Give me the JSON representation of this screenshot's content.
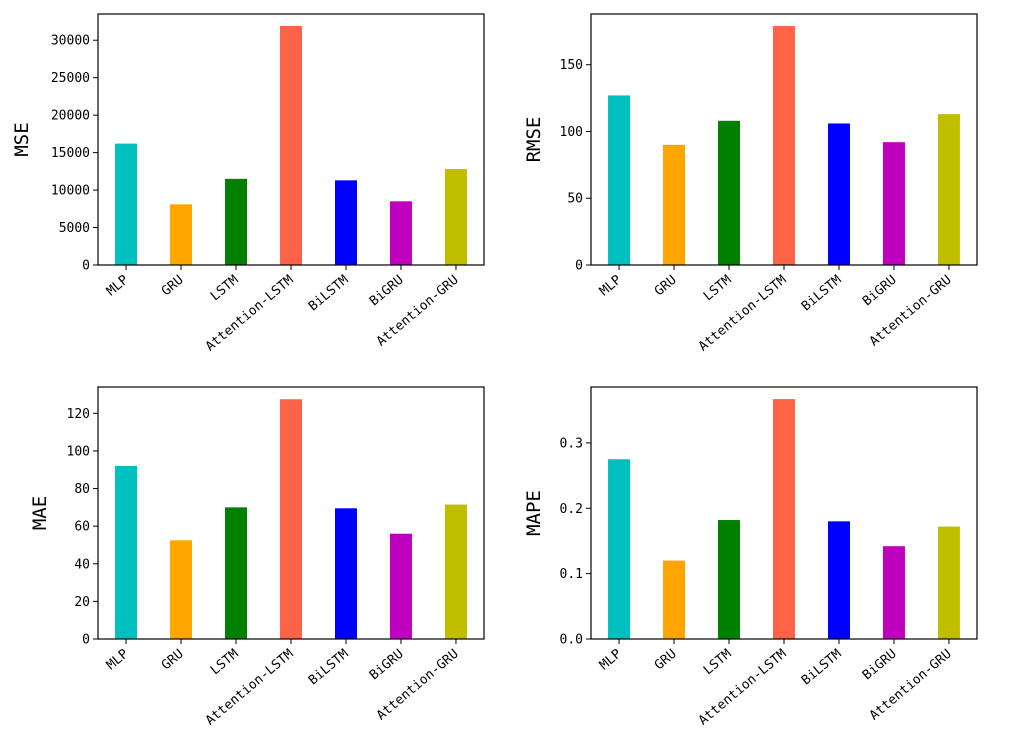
{
  "chart_data": [
    {
      "type": "bar",
      "ylabel": "MSE",
      "xlabel": "",
      "title": "",
      "categories": [
        "MLP",
        "GRU",
        "LSTM",
        "Attention-LSTM",
        "BiLSTM",
        "BiGRU",
        "Attention-GRU"
      ],
      "values": [
        16200,
        8100,
        11500,
        31900,
        11300,
        8500,
        12800
      ],
      "colors": [
        "#00bfbf",
        "#ffa500",
        "#008000",
        "#ff6347",
        "#0000ff",
        "#bf00bf",
        "#bfbf00"
      ],
      "ylim": [
        0,
        33500
      ],
      "yticks": [
        0,
        5000,
        10000,
        15000,
        20000,
        25000,
        30000
      ],
      "ytick_labels": [
        "0",
        "5000",
        "10000",
        "15000",
        "20000",
        "25000",
        "30000"
      ],
      "grid": false
    },
    {
      "type": "bar",
      "ylabel": "RMSE",
      "xlabel": "",
      "title": "",
      "categories": [
        "MLP",
        "GRU",
        "LSTM",
        "Attention-LSTM",
        "BiLSTM",
        "BiGRU",
        "Attention-GRU"
      ],
      "values": [
        127,
        90,
        108,
        179,
        106,
        92,
        113
      ],
      "colors": [
        "#00bfbf",
        "#ffa500",
        "#008000",
        "#ff6347",
        "#0000ff",
        "#bf00bf",
        "#bfbf00"
      ],
      "ylim": [
        0,
        188
      ],
      "yticks": [
        0,
        50,
        100,
        150
      ],
      "ytick_labels": [
        "0",
        "50",
        "100",
        "150"
      ],
      "grid": false
    },
    {
      "type": "bar",
      "ylabel": "MAE",
      "xlabel": "",
      "title": "",
      "categories": [
        "MLP",
        "GRU",
        "LSTM",
        "Attention-LSTM",
        "BiLSTM",
        "BiGRU",
        "Attention-GRU"
      ],
      "values": [
        92,
        52.5,
        70,
        127.5,
        69.5,
        56,
        71.5
      ],
      "colors": [
        "#00bfbf",
        "#ffa500",
        "#008000",
        "#ff6347",
        "#0000ff",
        "#bf00bf",
        "#bfbf00"
      ],
      "ylim": [
        0,
        134
      ],
      "yticks": [
        0,
        20,
        40,
        60,
        80,
        100,
        120
      ],
      "ytick_labels": [
        "0",
        "20",
        "40",
        "60",
        "80",
        "100",
        "120"
      ],
      "grid": false
    },
    {
      "type": "bar",
      "ylabel": "MAPE",
      "xlabel": "",
      "title": "",
      "categories": [
        "MLP",
        "GRU",
        "LSTM",
        "Attention-LSTM",
        "BiLSTM",
        "BiGRU",
        "Attention-GRU"
      ],
      "values": [
        0.275,
        0.12,
        0.182,
        0.367,
        0.18,
        0.142,
        0.172
      ],
      "colors": [
        "#00bfbf",
        "#ffa500",
        "#008000",
        "#ff6347",
        "#0000ff",
        "#bf00bf",
        "#bfbf00"
      ],
      "ylim": [
        0,
        0.3855
      ],
      "yticks": [
        0,
        0.1,
        0.2,
        0.3
      ],
      "ytick_labels": [
        "0.0",
        "0.1",
        "0.2",
        "0.3"
      ],
      "grid": false
    }
  ]
}
